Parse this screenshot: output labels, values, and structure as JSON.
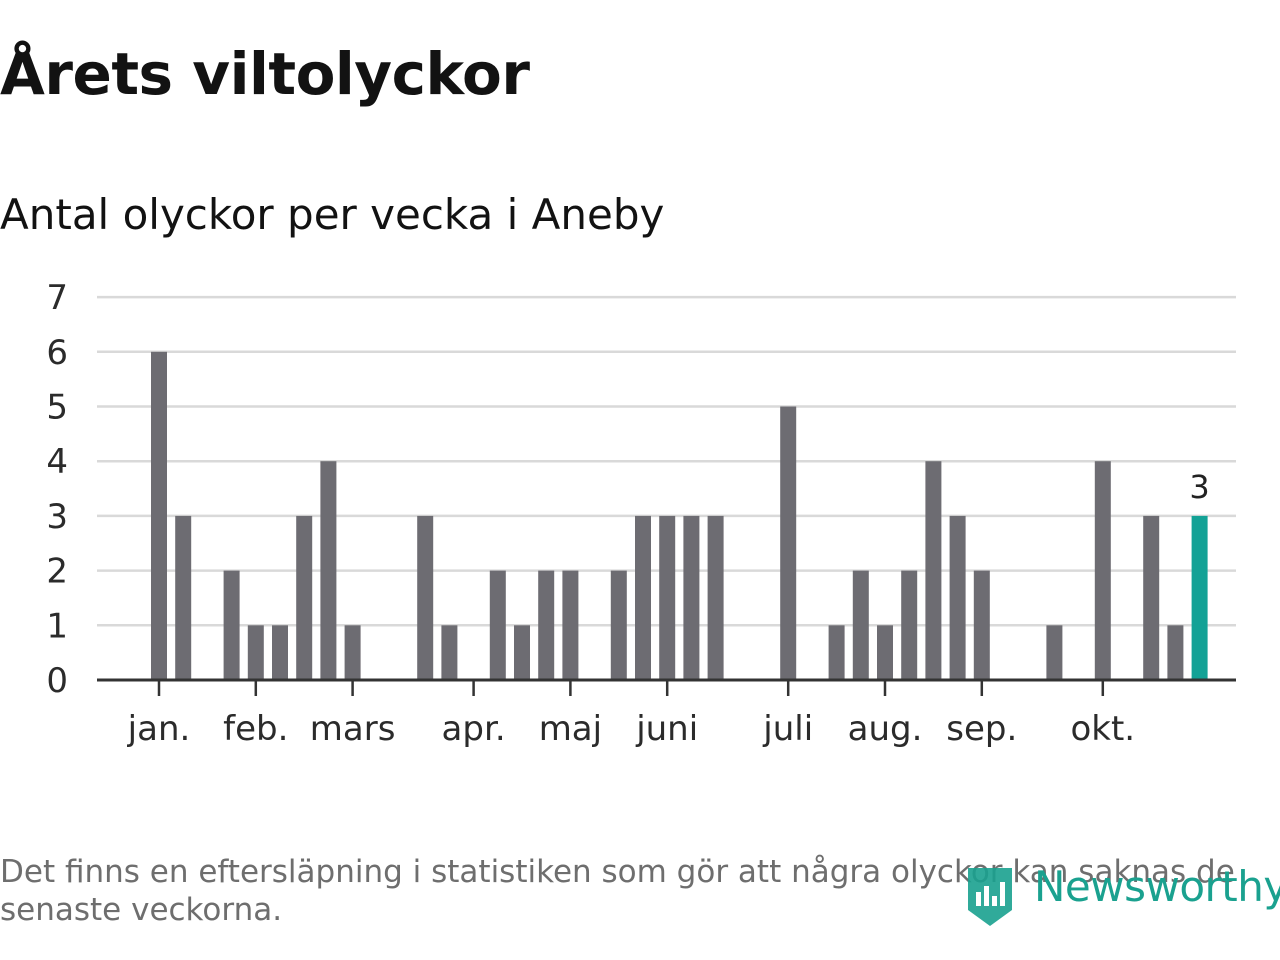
{
  "title": "Årets viltolyckor",
  "subtitle": "Antal olyckor per vecka i Aneby",
  "footnote": "Det finns en eftersläpning i statistiken som gör att några olyckor kan saknas de senaste veckorna.",
  "brand": {
    "name": "Newsworthy",
    "color": "#1aa18f"
  },
  "colors": {
    "bar": "#6d6c72",
    "highlight": "#13a296",
    "grid": "#d9d9d9",
    "axis": "#333333"
  },
  "chart_data": {
    "type": "bar",
    "title": "Antal olyckor per vecka i Aneby",
    "xlabel": "",
    "ylabel": "",
    "ylim": [
      0,
      7
    ],
    "yticks": [
      0,
      1,
      2,
      3,
      4,
      5,
      6,
      7
    ],
    "grid": true,
    "legend": "none",
    "weeks": [
      1,
      2,
      3,
      4,
      5,
      6,
      7,
      8,
      9,
      10,
      11,
      12,
      13,
      14,
      15,
      16,
      17,
      18,
      19,
      20,
      21,
      22,
      23,
      24,
      25,
      26,
      27,
      28,
      29,
      30,
      31,
      32,
      33,
      34,
      35,
      36,
      37,
      38,
      39,
      40,
      41,
      42,
      43
    ],
    "values": [
      6,
      3,
      0,
      2,
      1,
      1,
      3,
      4,
      1,
      0,
      0,
      3,
      1,
      0,
      2,
      1,
      2,
      2,
      0,
      2,
      3,
      3,
      3,
      3,
      0,
      0,
      5,
      0,
      1,
      2,
      1,
      2,
      4,
      3,
      2,
      0,
      0,
      1,
      0,
      4,
      0,
      3,
      1
    ],
    "highlight": {
      "week": 44,
      "value": 3,
      "label": "3"
    },
    "month_labels": [
      {
        "label": "jan.",
        "week": 1
      },
      {
        "label": "feb.",
        "week": 5
      },
      {
        "label": "mars",
        "week": 9
      },
      {
        "label": "apr.",
        "week": 14
      },
      {
        "label": "maj",
        "week": 18
      },
      {
        "label": "juni",
        "week": 22
      },
      {
        "label": "juli",
        "week": 27
      },
      {
        "label": "aug.",
        "week": 31
      },
      {
        "label": "sep.",
        "week": 35
      },
      {
        "label": "okt.",
        "week": 40
      }
    ]
  }
}
